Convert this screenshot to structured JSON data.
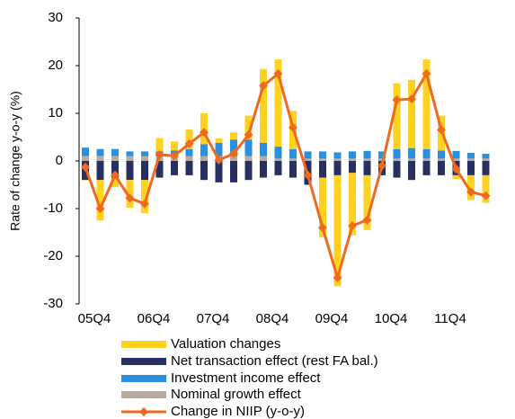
{
  "chart_data": {
    "type": "bar",
    "stacked": true,
    "ylabel": "Rate of change y-o-y (%)",
    "categories": [
      "05Q4",
      null,
      null,
      null,
      "06Q4",
      null,
      null,
      null,
      "07Q4",
      null,
      null,
      null,
      "08Q4",
      null,
      null,
      null,
      "09Q4",
      null,
      null,
      null,
      "10Q4",
      null,
      null,
      null,
      "11Q4",
      null,
      null,
      null
    ],
    "ylim": [
      -30,
      30
    ],
    "yticks": [
      -30,
      -20,
      -10,
      0,
      10,
      20,
      30
    ],
    "series": [
      {
        "name": "Valuation changes",
        "color": "#ffd21f",
        "values": [
          -0.1,
          -8.5,
          -2,
          -5.8,
          -7,
          2.8,
          1.9,
          4.1,
          6.5,
          0.9,
          1.5,
          5,
          15.5,
          18.3,
          8,
          0,
          -12.5,
          -23.3,
          -13.1,
          -11.5,
          0,
          13.8,
          14.3,
          18.8,
          7.3,
          -0.8,
          -5.2,
          -5.8
        ]
      },
      {
        "name": "Net transaction effect (rest FA bal.)",
        "color": "#283062",
        "values": [
          -4,
          -4,
          -3.5,
          -4,
          -4,
          -3.5,
          -3,
          -3,
          -4,
          -4.5,
          -4.5,
          -4,
          -3.5,
          -3,
          -3.5,
          -5,
          -3.5,
          -3,
          -2.5,
          -3,
          -3,
          -3.5,
          -4,
          -3,
          -3,
          -3,
          -3,
          -3
        ]
      },
      {
        "name": "Investment income effect",
        "color": "#2b8fe0",
        "values": [
          1.8,
          1.5,
          1.5,
          1,
          1,
          1,
          1.2,
          1.5,
          2.5,
          2.8,
          3.5,
          3.5,
          2.8,
          2.5,
          2,
          1.5,
          1.5,
          1.3,
          1.5,
          1.6,
          1.5,
          2,
          2.2,
          2,
          1.7,
          1.6,
          1.2,
          1
        ]
      },
      {
        "name": "Nominal growth effect",
        "color": "#b8aca0",
        "values": [
          1,
          1,
          1,
          1,
          1,
          1,
          1,
          1,
          1,
          1,
          1,
          1,
          1,
          0.5,
          0.5,
          0.5,
          0.5,
          0.5,
          0.5,
          0.5,
          0.5,
          0.5,
          0.5,
          0.5,
          0.5,
          0.5,
          0.5,
          0.5
        ]
      },
      {
        "name": "Change in NIIP (y-o-y)",
        "color": "#f06a1e",
        "type": "line",
        "values": [
          -1.3,
          -10,
          -3,
          -7.8,
          -9,
          1.3,
          1.1,
          3.6,
          6,
          0.2,
          1.5,
          5.5,
          15.8,
          18.3,
          7,
          -3,
          -14,
          -24.5,
          -13.6,
          -12.4,
          -1,
          12.8,
          13,
          18.3,
          6.5,
          -1.7,
          -6.5,
          -7.3
        ]
      }
    ]
  }
}
